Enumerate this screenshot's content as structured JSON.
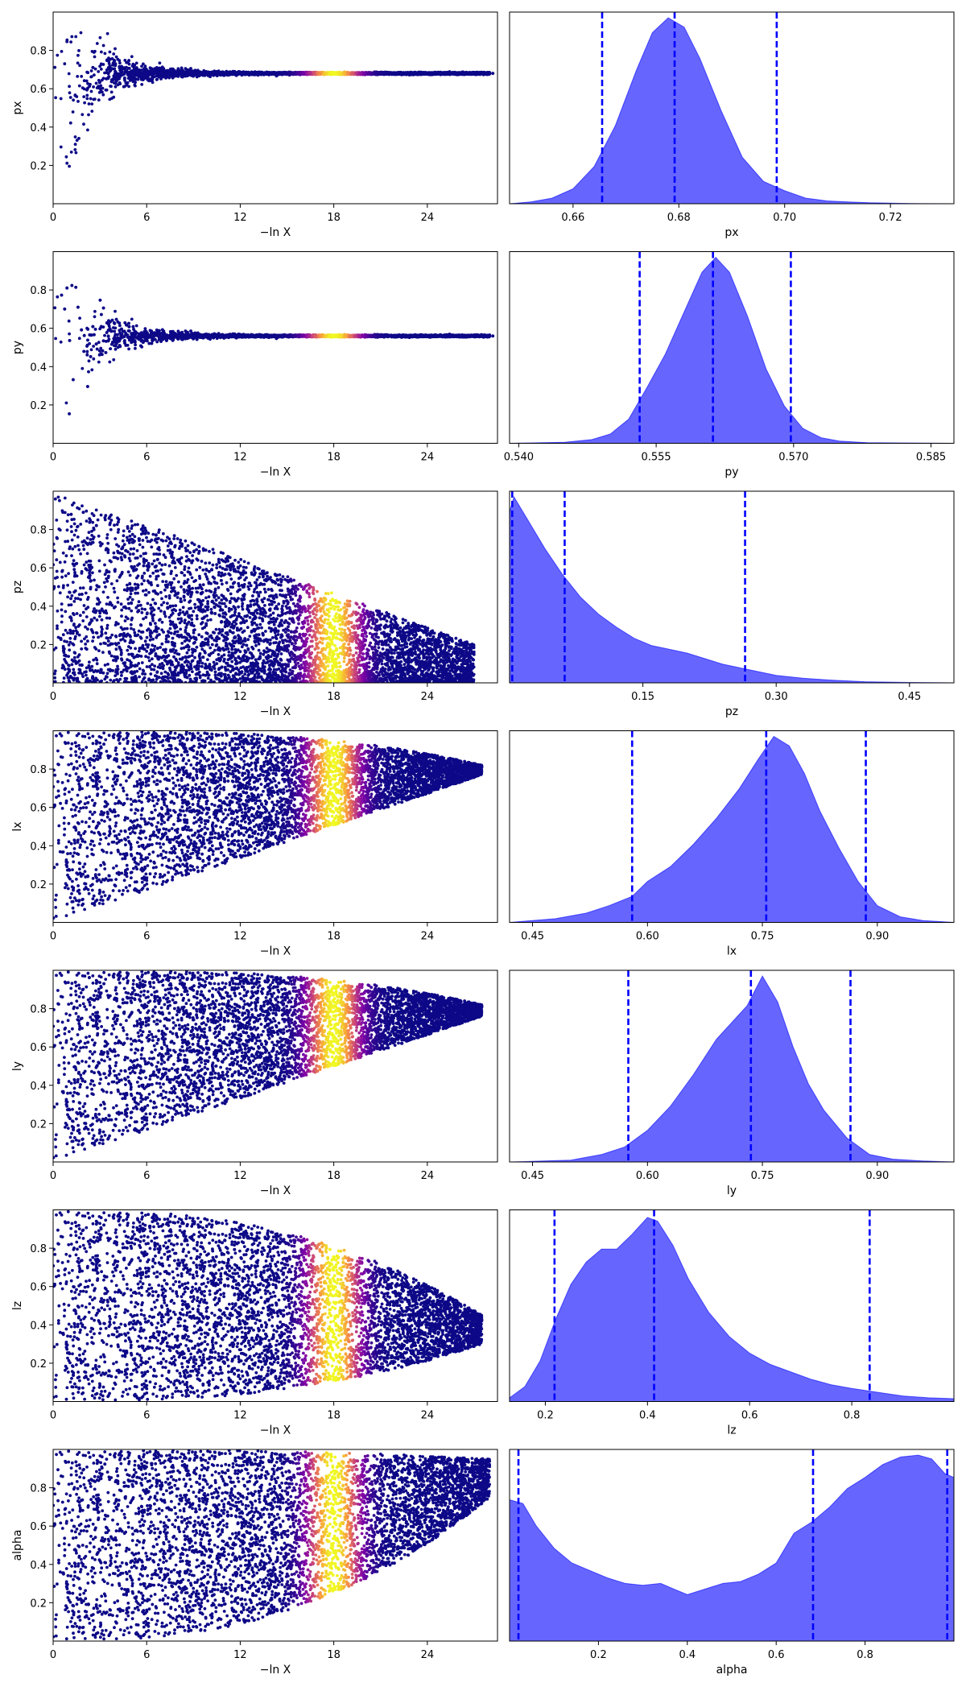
{
  "chart_data": [
    {
      "type": "scatter",
      "row": 0,
      "panel": "trace",
      "xlabel": "−ln X",
      "ylabel": "px",
      "xlim": [
        0,
        28.5
      ],
      "ylim": [
        0,
        1
      ],
      "xticks": [
        "0",
        "6",
        "12",
        "18",
        "24"
      ],
      "xtick_values": [
        0,
        6,
        12,
        18,
        24
      ],
      "yticks": [
        "0.2",
        "0.4",
        "0.6",
        "0.8"
      ],
      "ytick_values": [
        0.2,
        0.4,
        0.6,
        0.8
      ],
      "colormap": "plasma",
      "color_peak_x": 18,
      "trace": {
        "converged_value": 0.68,
        "start_spread": 0.5,
        "collapse_x": 10,
        "end_x": 28,
        "max_x_point": 28.2
      }
    },
    {
      "type": "area",
      "row": 0,
      "panel": "posterior",
      "xlabel": "px",
      "xlim": [
        0.648,
        0.732
      ],
      "xticks": [
        "0.66",
        "0.68",
        "0.70",
        "0.72"
      ],
      "xtick_values": [
        0.66,
        0.68,
        0.7,
        0.72
      ],
      "quantile_lines": [
        0.6655,
        0.6792,
        0.6985
      ],
      "density": {
        "x": [
          0.648,
          0.652,
          0.656,
          0.66,
          0.664,
          0.668,
          0.672,
          0.675,
          0.678,
          0.681,
          0.684,
          0.688,
          0.692,
          0.696,
          0.7,
          0.704,
          0.708,
          0.712,
          0.716,
          0.72,
          0.724,
          0.732
        ],
        "y": [
          0,
          0.01,
          0.03,
          0.08,
          0.2,
          0.42,
          0.72,
          0.92,
          1,
          0.95,
          0.78,
          0.5,
          0.25,
          0.12,
          0.07,
          0.03,
          0.015,
          0.01,
          0.005,
          0.003,
          0.001,
          0
        ]
      },
      "fill_color": "#5555ff",
      "line_color": "#0000ff"
    },
    {
      "type": "scatter",
      "row": 1,
      "panel": "trace",
      "xlabel": "−ln X",
      "ylabel": "py",
      "xlim": [
        0,
        28.5
      ],
      "ylim": [
        0,
        1
      ],
      "xticks": [
        "0",
        "6",
        "12",
        "18",
        "24"
      ],
      "xtick_values": [
        0,
        6,
        12,
        18,
        24
      ],
      "yticks": [
        "0.2",
        "0.4",
        "0.6",
        "0.8"
      ],
      "ytick_values": [
        0.2,
        0.4,
        0.6,
        0.8
      ],
      "colormap": "plasma",
      "color_peak_x": 18,
      "trace": {
        "converged_value": 0.56,
        "start_spread": 0.5,
        "collapse_x": 10,
        "end_x": 28,
        "max_x_point": 28.2
      }
    },
    {
      "type": "area",
      "row": 1,
      "panel": "posterior",
      "xlabel": "py",
      "xlim": [
        0.539,
        0.5875
      ],
      "xticks": [
        "0.540",
        "0.555",
        "0.570",
        "0.585"
      ],
      "xtick_values": [
        0.54,
        0.555,
        0.57,
        0.585
      ],
      "quantile_lines": [
        0.5532,
        0.5612,
        0.5697
      ],
      "density": {
        "x": [
          0.539,
          0.545,
          0.548,
          0.55,
          0.552,
          0.554,
          0.556,
          0.558,
          0.56,
          0.5615,
          0.563,
          0.565,
          0.567,
          0.569,
          0.571,
          0.573,
          0.575,
          0.578,
          0.5875
        ],
        "y": [
          0,
          0.005,
          0.02,
          0.05,
          0.13,
          0.3,
          0.48,
          0.7,
          0.92,
          1,
          0.92,
          0.68,
          0.4,
          0.2,
          0.08,
          0.03,
          0.012,
          0.003,
          0
        ]
      },
      "fill_color": "#5555ff",
      "line_color": "#0000ff"
    },
    {
      "type": "scatter",
      "row": 2,
      "panel": "trace",
      "xlabel": "−ln X",
      "ylabel": "pz",
      "xlim": [
        0,
        28.5
      ],
      "ylim": [
        0,
        1
      ],
      "xticks": [
        "0",
        "6",
        "12",
        "18",
        "24"
      ],
      "xtick_values": [
        0,
        6,
        12,
        18,
        24
      ],
      "yticks": [
        "0.2",
        "0.4",
        "0.6",
        "0.8"
      ],
      "ytick_values": [
        0.2,
        0.4,
        0.6,
        0.8
      ],
      "colormap": "plasma",
      "color_peak_x": 18,
      "trace": {
        "lower": 0.0,
        "upper_at_start": 1.0,
        "upper_at_end": 0.2,
        "end_x": 27
      }
    },
    {
      "type": "area",
      "row": 2,
      "panel": "posterior",
      "xlabel": "pz",
      "xlim": [
        0,
        0.5
      ],
      "xticks": [
        "0.15",
        "0.30",
        "0.45"
      ],
      "xtick_values": [
        0.15,
        0.3,
        0.45
      ],
      "quantile_lines": [
        0.003,
        0.062,
        0.265
      ],
      "density": {
        "x": [
          0,
          0.005,
          0.02,
          0.04,
          0.06,
          0.08,
          0.1,
          0.12,
          0.14,
          0.16,
          0.18,
          0.2,
          0.22,
          0.24,
          0.26,
          0.28,
          0.3,
          0.33,
          0.36,
          0.4,
          0.45,
          0.5
        ],
        "y": [
          0.92,
          1,
          0.88,
          0.72,
          0.58,
          0.46,
          0.37,
          0.3,
          0.24,
          0.2,
          0.18,
          0.16,
          0.13,
          0.1,
          0.08,
          0.06,
          0.04,
          0.025,
          0.015,
          0.006,
          0.002,
          0
        ]
      },
      "fill_color": "#5555ff",
      "line_color": "#0000ff"
    },
    {
      "type": "scatter",
      "row": 3,
      "panel": "trace",
      "xlabel": "−ln X",
      "ylabel": "lx",
      "xlim": [
        0,
        28.5
      ],
      "ylim": [
        0,
        1
      ],
      "xticks": [
        "0",
        "6",
        "12",
        "18",
        "24"
      ],
      "xtick_values": [
        0,
        6,
        12,
        18,
        24
      ],
      "yticks": [
        "0.2",
        "0.4",
        "0.6",
        "0.8"
      ],
      "ytick_values": [
        0.2,
        0.4,
        0.6,
        0.8
      ],
      "colormap": "plasma",
      "color_peak_x": 18,
      "trace": {
        "lower_at_start": 0.0,
        "upper": 1.0,
        "lower_at_end": 0.77,
        "end_x": 27.5
      }
    },
    {
      "type": "area",
      "row": 3,
      "panel": "posterior",
      "xlabel": "lx",
      "xlim": [
        0.42,
        1.0
      ],
      "xticks": [
        "0.45",
        "0.60",
        "0.75",
        "0.90"
      ],
      "xtick_values": [
        0.45,
        0.6,
        0.75,
        0.9
      ],
      "quantile_lines": [
        0.58,
        0.755,
        0.885
      ],
      "density": {
        "x": [
          0.42,
          0.48,
          0.52,
          0.55,
          0.58,
          0.6,
          0.63,
          0.66,
          0.69,
          0.72,
          0.745,
          0.765,
          0.785,
          0.805,
          0.825,
          0.85,
          0.875,
          0.9,
          0.93,
          0.96,
          1.0
        ],
        "y": [
          0,
          0.02,
          0.05,
          0.09,
          0.14,
          0.22,
          0.3,
          0.42,
          0.56,
          0.72,
          0.88,
          1,
          0.95,
          0.8,
          0.6,
          0.4,
          0.22,
          0.09,
          0.03,
          0.01,
          0
        ]
      },
      "fill_color": "#5555ff",
      "line_color": "#0000ff"
    },
    {
      "type": "scatter",
      "row": 4,
      "panel": "trace",
      "xlabel": "−ln X",
      "ylabel": "ly",
      "xlim": [
        0,
        28.5
      ],
      "ylim": [
        0,
        1
      ],
      "xticks": [
        "0",
        "6",
        "12",
        "18",
        "24"
      ],
      "xtick_values": [
        0,
        6,
        12,
        18,
        24
      ],
      "yticks": [
        "0.2",
        "0.4",
        "0.6",
        "0.8"
      ],
      "ytick_values": [
        0.2,
        0.4,
        0.6,
        0.8
      ],
      "colormap": "plasma",
      "color_peak_x": 18,
      "trace": {
        "lower_at_start": 0.0,
        "upper": 1.0,
        "lower_at_end": 0.76,
        "end_x": 27.5
      }
    },
    {
      "type": "area",
      "row": 4,
      "panel": "posterior",
      "xlabel": "ly",
      "xlim": [
        0.42,
        1.0
      ],
      "xticks": [
        "0.45",
        "0.60",
        "0.75",
        "0.90"
      ],
      "xtick_values": [
        0.45,
        0.6,
        0.75,
        0.9
      ],
      "quantile_lines": [
        0.575,
        0.735,
        0.865
      ],
      "density": {
        "x": [
          0.42,
          0.5,
          0.54,
          0.57,
          0.6,
          0.63,
          0.66,
          0.69,
          0.71,
          0.73,
          0.75,
          0.77,
          0.79,
          0.81,
          0.83,
          0.86,
          0.89,
          0.92,
          0.96,
          1.0
        ],
        "y": [
          0,
          0.01,
          0.04,
          0.08,
          0.17,
          0.3,
          0.47,
          0.66,
          0.75,
          0.84,
          1,
          0.86,
          0.62,
          0.42,
          0.28,
          0.13,
          0.04,
          0.015,
          0.005,
          0
        ]
      },
      "fill_color": "#5555ff",
      "line_color": "#0000ff"
    },
    {
      "type": "scatter",
      "row": 5,
      "panel": "trace",
      "xlabel": "−ln X",
      "ylabel": "lz",
      "xlim": [
        0,
        28.5
      ],
      "ylim": [
        0,
        1
      ],
      "xticks": [
        "0",
        "6",
        "12",
        "18",
        "24"
      ],
      "xtick_values": [
        0,
        6,
        12,
        18,
        24
      ],
      "yticks": [
        "0.2",
        "0.4",
        "0.6",
        "0.8"
      ],
      "ytick_values": [
        0.2,
        0.4,
        0.6,
        0.8
      ],
      "colormap": "plasma",
      "color_peak_x": 18,
      "trace": {
        "lower_at_start": 0.0,
        "upper_at_start": 1.0,
        "lower_at_end": 0.3,
        "upper_at_end": 0.45,
        "end_x": 27.5
      }
    },
    {
      "type": "area",
      "row": 5,
      "panel": "posterior",
      "xlabel": "lz",
      "xlim": [
        0.13,
        1.0
      ],
      "xticks": [
        "0.2",
        "0.4",
        "0.6",
        "0.8"
      ],
      "xtick_values": [
        0.2,
        0.4,
        0.6,
        0.8
      ],
      "quantile_lines": [
        0.218,
        0.413,
        0.835
      ],
      "density": {
        "x": [
          0.13,
          0.16,
          0.19,
          0.22,
          0.25,
          0.28,
          0.31,
          0.34,
          0.37,
          0.4,
          0.42,
          0.45,
          0.48,
          0.52,
          0.56,
          0.6,
          0.64,
          0.68,
          0.72,
          0.76,
          0.8,
          0.85,
          0.9,
          0.95,
          1.0
        ],
        "y": [
          0.02,
          0.08,
          0.22,
          0.44,
          0.63,
          0.75,
          0.82,
          0.82,
          0.9,
          0.99,
          0.97,
          0.84,
          0.66,
          0.48,
          0.35,
          0.26,
          0.2,
          0.16,
          0.12,
          0.09,
          0.07,
          0.05,
          0.03,
          0.02,
          0.015
        ]
      },
      "fill_color": "#5555ff",
      "line_color": "#0000ff"
    },
    {
      "type": "scatter",
      "row": 6,
      "panel": "trace",
      "xlabel": "−ln X",
      "ylabel": "alpha",
      "xlim": [
        0,
        28.5
      ],
      "ylim": [
        0,
        1
      ],
      "xticks": [
        "0",
        "6",
        "12",
        "18",
        "24"
      ],
      "xtick_values": [
        0,
        6,
        12,
        18,
        24
      ],
      "yticks": [
        "0.2",
        "0.4",
        "0.6",
        "0.8"
      ],
      "ytick_values": [
        0.2,
        0.4,
        0.6,
        0.8
      ],
      "colormap": "plasma",
      "color_peak_x": 18,
      "trace": {
        "lower_at_start": 0.0,
        "upper_at_start": 1.0,
        "lower_at_end": 0.75,
        "upper_at_end": 0.95,
        "end_x": 28
      }
    },
    {
      "type": "area",
      "row": 6,
      "panel": "posterior",
      "xlabel": "alpha",
      "xlim": [
        0,
        1.0
      ],
      "xticks": [
        "0.2",
        "0.4",
        "0.6",
        "0.8"
      ],
      "xtick_values": [
        0.2,
        0.4,
        0.6,
        0.8
      ],
      "quantile_lines": [
        0.02,
        0.683,
        0.985
      ],
      "density": {
        "x": [
          0,
          0.03,
          0.06,
          0.1,
          0.14,
          0.18,
          0.22,
          0.26,
          0.3,
          0.34,
          0.37,
          0.4,
          0.44,
          0.48,
          0.52,
          0.56,
          0.6,
          0.64,
          0.68,
          0.72,
          0.76,
          0.8,
          0.84,
          0.88,
          0.92,
          0.95,
          0.98,
          1.0
        ],
        "y": [
          0.76,
          0.74,
          0.62,
          0.5,
          0.42,
          0.38,
          0.34,
          0.31,
          0.3,
          0.31,
          0.28,
          0.25,
          0.28,
          0.31,
          0.32,
          0.36,
          0.42,
          0.58,
          0.64,
          0.72,
          0.82,
          0.88,
          0.95,
          0.99,
          1,
          0.98,
          0.9,
          0.88
        ]
      },
      "fill_color": "#5555ff",
      "line_color": "#0000ff"
    }
  ]
}
